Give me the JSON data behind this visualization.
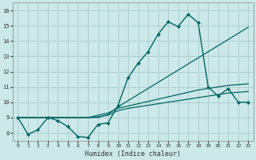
{
  "xlabel": "Humidex (Indice chaleur)",
  "background_color": "#cce8e8",
  "grid_color": "#aacccc",
  "line_color": "#006666",
  "xlim": [
    -0.5,
    23.5
  ],
  "ylim": [
    7.5,
    16.5
  ],
  "xticks": [
    0,
    1,
    2,
    3,
    4,
    5,
    6,
    7,
    8,
    9,
    10,
    11,
    12,
    13,
    14,
    15,
    16,
    17,
    18,
    19,
    20,
    21,
    22,
    23
  ],
  "yticks": [
    8,
    9,
    10,
    11,
    12,
    13,
    14,
    15,
    16
  ],
  "s1": [
    9.0,
    7.9,
    8.2,
    9.0,
    8.8,
    8.4,
    7.75,
    7.7,
    8.55,
    8.65,
    9.8,
    11.6,
    12.55,
    13.3,
    14.45,
    15.25,
    14.95,
    15.75,
    15.2,
    11.0,
    10.4,
    10.9,
    10.0,
    10.0
  ],
  "s2": [
    9.0,
    9.0,
    9.0,
    9.0,
    9.0,
    9.0,
    9.0,
    9.0,
    9.0,
    9.2,
    9.7,
    10.1,
    10.5,
    10.9,
    11.3,
    11.7,
    12.1,
    12.5,
    12.9,
    13.3,
    13.7,
    14.1,
    14.5,
    14.9
  ],
  "s3": [
    9.0,
    9.0,
    9.0,
    9.0,
    9.0,
    9.0,
    9.0,
    9.0,
    9.15,
    9.3,
    9.6,
    9.75,
    9.9,
    10.05,
    10.2,
    10.35,
    10.5,
    10.65,
    10.8,
    10.9,
    11.0,
    11.1,
    11.15,
    11.2
  ],
  "s4": [
    9.0,
    9.0,
    9.0,
    9.0,
    9.0,
    9.0,
    9.0,
    9.0,
    9.05,
    9.15,
    9.45,
    9.6,
    9.7,
    9.8,
    9.9,
    10.0,
    10.1,
    10.2,
    10.3,
    10.4,
    10.5,
    10.6,
    10.65,
    10.7
  ]
}
